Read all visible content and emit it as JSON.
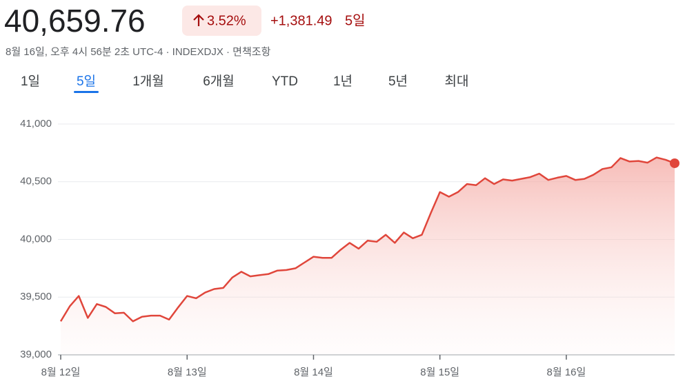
{
  "header": {
    "price": "40,659.76",
    "change_percent": "3.52%",
    "change_value": "+1,381.49",
    "period": "5일",
    "subtitle": "8월 16일, 오후 4시 56분 2초 UTC-4 · INDEXDJX · 면책조항"
  },
  "tabs": {
    "items": [
      "1일",
      "5일",
      "1개월",
      "6개월",
      "YTD",
      "1년",
      "5년",
      "최대"
    ],
    "selected": 1
  },
  "chart_data": {
    "type": "line",
    "color": "#e0463b",
    "categories": [
      "8월 12일",
      null,
      null,
      null,
      null,
      null,
      null,
      null,
      null,
      null,
      null,
      null,
      null,
      null,
      "8월 13일",
      null,
      null,
      null,
      null,
      null,
      null,
      null,
      null,
      null,
      null,
      null,
      null,
      null,
      "8월 14일",
      null,
      null,
      null,
      null,
      null,
      null,
      null,
      null,
      null,
      null,
      null,
      null,
      null,
      "8월 15일",
      null,
      null,
      null,
      null,
      null,
      null,
      null,
      null,
      null,
      null,
      null,
      null,
      null,
      "8월 16일",
      null,
      null,
      null,
      null,
      null,
      null,
      null,
      null,
      null,
      null,
      null,
      null
    ],
    "values": [
      39290,
      39420,
      39510,
      39320,
      39440,
      39415,
      39360,
      39365,
      39290,
      39330,
      39340,
      39340,
      39305,
      39410,
      39510,
      39490,
      39540,
      39570,
      39580,
      39670,
      39720,
      39680,
      39690,
      39700,
      39730,
      39735,
      39750,
      39800,
      39850,
      39840,
      39840,
      39910,
      39970,
      39920,
      39990,
      39980,
      40040,
      39970,
      40060,
      40010,
      40040,
      40230,
      40410,
      40370,
      40410,
      40480,
      40470,
      40530,
      40480,
      40520,
      40510,
      40525,
      40540,
      40570,
      40515,
      40535,
      40550,
      40515,
      40525,
      40560,
      40610,
      40625,
      40705,
      40675,
      40680,
      40665,
      40710,
      40690,
      40660
    ],
    "ylim": [
      39000,
      41000
    ],
    "yticks": [
      {
        "value": 39000,
        "label": "39,000"
      },
      {
        "value": 39500,
        "label": "39,500"
      },
      {
        "value": 40000,
        "label": "40,000"
      },
      {
        "value": 40500,
        "label": "40,500"
      },
      {
        "value": 41000,
        "label": "41,000"
      }
    ],
    "grid": true
  }
}
